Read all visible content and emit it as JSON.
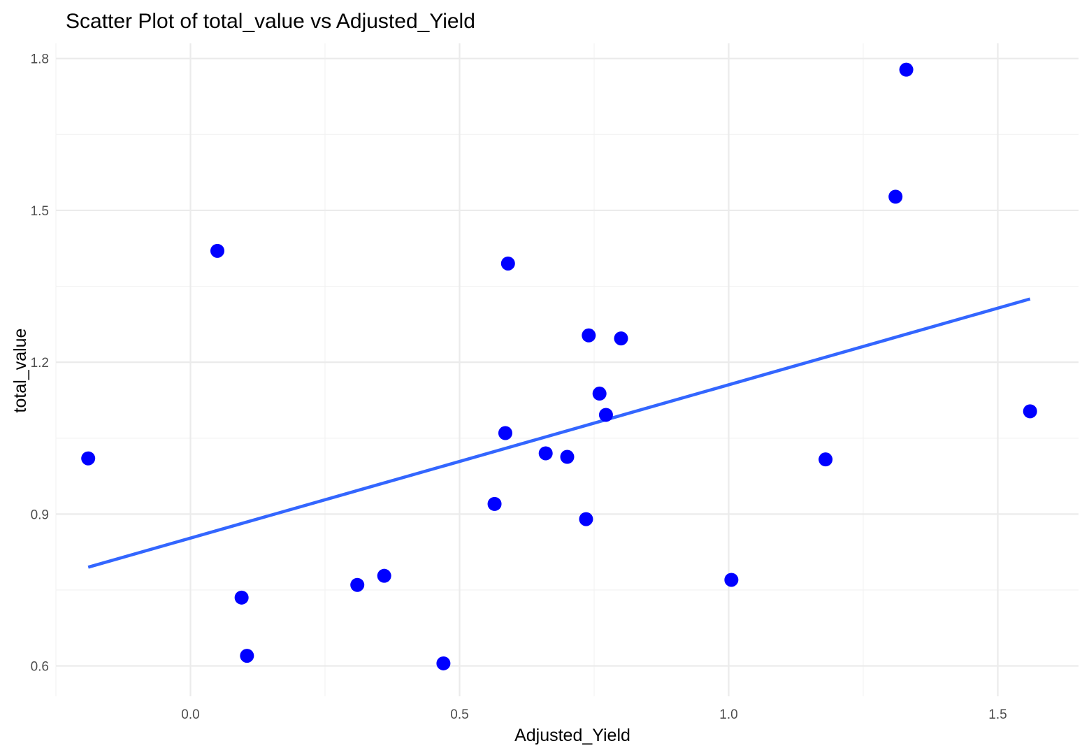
{
  "chart_data": {
    "type": "scatter",
    "title": "Scatter Plot of total_value vs Adjusted_Yield",
    "xlabel": "Adjusted_Yield",
    "ylabel": "total_value",
    "xlim": [
      -0.25,
      1.65
    ],
    "ylim": [
      0.54,
      1.83
    ],
    "x_ticks": [
      {
        "value": 0.0,
        "label": "0.0"
      },
      {
        "value": 0.5,
        "label": "0.5"
      },
      {
        "value": 1.0,
        "label": "1.0"
      },
      {
        "value": 1.5,
        "label": "1.5"
      }
    ],
    "y_ticks": [
      {
        "value": 0.6,
        "label": "0.6"
      },
      {
        "value": 0.9,
        "label": "0.9"
      },
      {
        "value": 1.2,
        "label": "1.2"
      },
      {
        "value": 1.5,
        "label": "1.5"
      },
      {
        "value": 1.8,
        "label": "1.8"
      }
    ],
    "x_minor": [
      -0.25,
      0.25,
      0.75,
      1.25
    ],
    "y_minor": [
      0.75,
      1.05,
      1.35,
      1.65
    ],
    "grid": true,
    "legend": "none",
    "point_color": "#0000ff",
    "line_color": "#3366ff",
    "points": [
      {
        "x": -0.19,
        "y": 1.01
      },
      {
        "x": 0.05,
        "y": 1.42
      },
      {
        "x": 0.095,
        "y": 0.735
      },
      {
        "x": 0.105,
        "y": 0.62
      },
      {
        "x": 0.31,
        "y": 0.76
      },
      {
        "x": 0.36,
        "y": 0.778
      },
      {
        "x": 0.47,
        "y": 0.605
      },
      {
        "x": 0.565,
        "y": 0.92
      },
      {
        "x": 0.585,
        "y": 1.06
      },
      {
        "x": 0.59,
        "y": 1.395
      },
      {
        "x": 0.66,
        "y": 1.02
      },
      {
        "x": 0.7,
        "y": 1.013
      },
      {
        "x": 0.735,
        "y": 0.89
      },
      {
        "x": 0.74,
        "y": 1.253
      },
      {
        "x": 0.76,
        "y": 1.138
      },
      {
        "x": 0.772,
        "y": 1.096
      },
      {
        "x": 0.8,
        "y": 1.247
      },
      {
        "x": 1.005,
        "y": 0.77
      },
      {
        "x": 1.18,
        "y": 1.008
      },
      {
        "x": 1.31,
        "y": 1.527
      },
      {
        "x": 1.33,
        "y": 1.778
      },
      {
        "x": 1.56,
        "y": 1.103
      }
    ],
    "trend_line": {
      "x": [
        -0.19,
        1.56
      ],
      "y": [
        0.795,
        1.325
      ]
    }
  }
}
